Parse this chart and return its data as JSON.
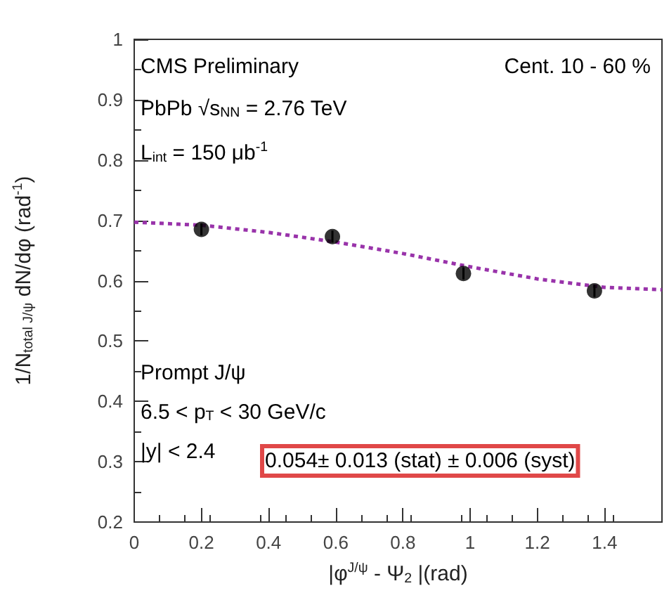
{
  "chart_data": {
    "type": "scatter",
    "xlabel": "|φ$^{J/ψ}$ - Ψ$_{2}$ |(rad)",
    "ylabel": "1/N$_{total J/ψ}$ dN/dφ (rad$^{-1}$)",
    "x": [
      0.2,
      0.59,
      0.98,
      1.37
    ],
    "series": [
      {
        "color": "#000000",
        "values": [
          0.685,
          0.673,
          0.612,
          0.583
        ],
        "errors": [
          0.01,
          0.01,
          0.01,
          0.01
        ],
        "marker": "circle"
      },
      {
        "type": "line",
        "color": "#9933aa",
        "x": [
          0,
          0.2,
          0.4,
          0.6,
          0.8,
          1.0,
          1.2,
          1.4,
          1.571
        ],
        "values": [
          0.697,
          0.692,
          0.68,
          0.664,
          0.645,
          0.623,
          0.603,
          0.589,
          0.585
        ],
        "line_style": "dotted",
        "marker": "none"
      }
    ],
    "xlim": [
      0,
      1.571
    ],
    "xticks": [
      0,
      0.2,
      0.4,
      0.6,
      0.8,
      1,
      1.2,
      1.4
    ],
    "ylim": [
      0.2,
      1
    ],
    "yticks": [
      0.2,
      0.3,
      0.4,
      0.5,
      0.6,
      0.7,
      0.8,
      0.9,
      1
    ],
    "grid": false,
    "annotations": [
      "CMS Preliminary",
      "Cent. 10 - 60 %",
      "PbPb √s$_{NN}$ = 2.76 TeV",
      "L$_{int}$ = 150 μb$^{-1}$",
      "Prompt J/ψ",
      "6.5 < p$_{T}$ < 30 GeV/c",
      "|y| < 2.4",
      "0.054± 0.013 (stat) ± 0.006 (syst)"
    ]
  }
}
